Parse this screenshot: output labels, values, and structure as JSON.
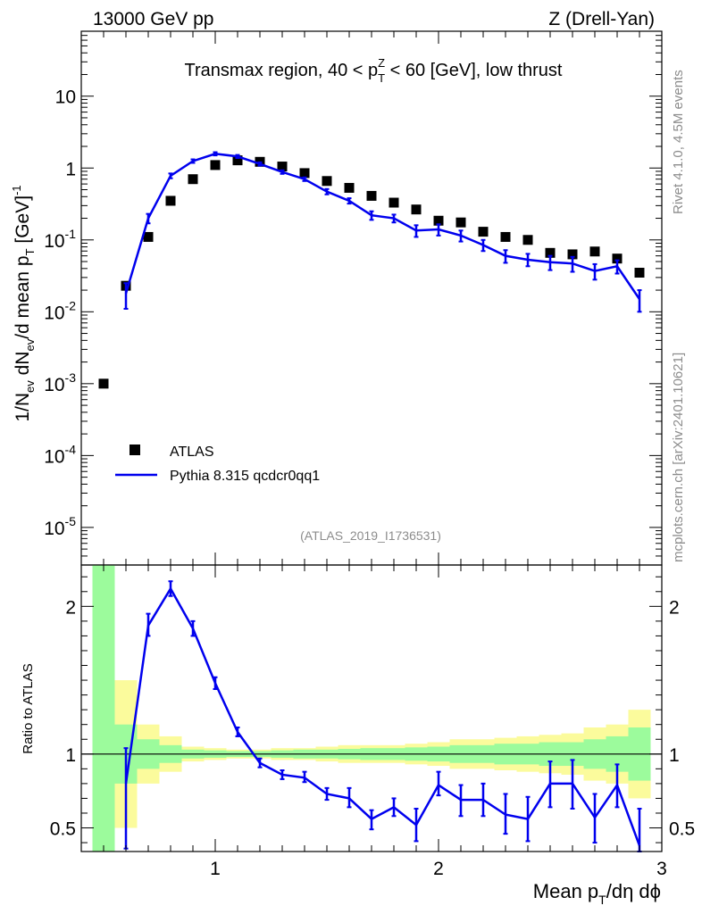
{
  "header": {
    "energy_label": "13000 GeV pp",
    "process_label": "Z (Drell-Yan)"
  },
  "side_labels": {
    "rivet": "Rivet 4.1.0,  4.5M events",
    "mcplots": "mcplots.cern.ch [arXiv:2401.10621]"
  },
  "colors": {
    "mc_line": "#0000ee",
    "band_inner": "#9cfb9c",
    "band_outer": "#fbfb9c",
    "data_marker": "#000000"
  },
  "chart_data": [
    {
      "type": "scatter",
      "title": "Transmax region, 40 < p",
      "title_sup": "Z",
      "title_sub": "T",
      "title_tail": " < 60 [GeV], low thrust",
      "ylabel_parts": [
        "1/N",
        "ev",
        " dN",
        "ev",
        "/d mean p",
        "T",
        " [GeV]",
        "-1"
      ],
      "yscale": "log",
      "ylim": [
        3e-06,
        80
      ],
      "xlim": [
        0.4,
        3.0
      ],
      "x_major_ticks": [
        1,
        2,
        3
      ],
      "y_tick_labels": [
        {
          "base": "10",
          "exp": "-5",
          "value": 1e-05
        },
        {
          "base": "10",
          "exp": "-4",
          "value": 0.0001
        },
        {
          "base": "10",
          "exp": "-3",
          "value": 0.001
        },
        {
          "base": "10",
          "exp": "-2",
          "value": 0.01
        },
        {
          "base": "10",
          "exp": "-1",
          "value": 0.1
        },
        {
          "base": "",
          "exp": "",
          "text": "1",
          "value": 1
        },
        {
          "base": "",
          "exp": "",
          "text": "10",
          "value": 10
        }
      ],
      "watermark": "(ATLAS_2019_I1736531)",
      "legend": {
        "position": "lower-left",
        "entries": [
          {
            "label": "ATLAS",
            "style": "square-marker"
          },
          {
            "label": "Pythia 8.315 qcdcr0qq1",
            "style": "line"
          }
        ]
      },
      "series": [
        {
          "name": "ATLAS",
          "x": [
            0.5,
            0.6,
            0.7,
            0.8,
            0.9,
            1.0,
            1.1,
            1.2,
            1.3,
            1.4,
            1.5,
            1.6,
            1.7,
            1.8,
            1.9,
            2.0,
            2.1,
            2.2,
            2.3,
            2.4,
            2.5,
            2.6,
            2.7,
            2.8,
            2.9
          ],
          "y": [
            0.001,
            0.023,
            0.11,
            0.35,
            0.7,
            1.1,
            1.28,
            1.22,
            1.05,
            0.85,
            0.66,
            0.53,
            0.41,
            0.33,
            0.265,
            0.185,
            0.175,
            0.13,
            0.11,
            0.1,
            0.066,
            0.063,
            0.069,
            0.055,
            0.035
          ]
        },
        {
          "name": "Pythia 8.315 qcdcr0qq1",
          "x": [
            0.6,
            0.7,
            0.8,
            0.9,
            1.0,
            1.1,
            1.2,
            1.3,
            1.4,
            1.5,
            1.6,
            1.7,
            1.8,
            1.9,
            2.0,
            2.1,
            2.2,
            2.3,
            2.4,
            2.5,
            2.6,
            2.7,
            2.8,
            2.9
          ],
          "y": [
            0.018,
            0.2,
            0.78,
            1.25,
            1.58,
            1.45,
            1.14,
            0.88,
            0.7,
            0.47,
            0.35,
            0.22,
            0.2,
            0.135,
            0.14,
            0.115,
            0.085,
            0.06,
            0.053,
            0.049,
            0.047,
            0.037,
            0.043,
            0.015
          ],
          "y_low": [
            0.011,
            0.17,
            0.72,
            1.18,
            1.5,
            1.38,
            1.08,
            0.83,
            0.66,
            0.43,
            0.32,
            0.19,
            0.175,
            0.11,
            0.115,
            0.095,
            0.07,
            0.048,
            0.043,
            0.038,
            0.036,
            0.028,
            0.034,
            0.01
          ],
          "y_high": [
            0.025,
            0.23,
            0.84,
            1.32,
            1.66,
            1.52,
            1.2,
            0.93,
            0.74,
            0.51,
            0.38,
            0.25,
            0.225,
            0.16,
            0.165,
            0.135,
            0.1,
            0.072,
            0.064,
            0.06,
            0.058,
            0.046,
            0.052,
            0.02
          ]
        }
      ]
    },
    {
      "type": "line",
      "ylabel": "Ratio to ATLAS",
      "xlabel": "Mean p",
      "xlabel_sub": "T",
      "xlabel_tail": "/dη dϕ",
      "xlim": [
        0.4,
        3.0
      ],
      "ylim": [
        0.34,
        2.28
      ],
      "x_tick_labels": [
        "1",
        "2",
        "3"
      ],
      "y_tick_labels": [
        "0.5",
        "1",
        "2"
      ],
      "reference_line": 1.0,
      "bands": {
        "edges": [
          0.45,
          0.55,
          0.65,
          0.75,
          0.85,
          0.95,
          1.05,
          1.15,
          1.25,
          1.35,
          1.45,
          1.55,
          1.65,
          1.75,
          1.85,
          1.95,
          2.05,
          2.15,
          2.25,
          2.35,
          2.45,
          2.55,
          2.65,
          2.75,
          2.85,
          2.95
        ],
        "outer_low": [
          0.34,
          0.5,
          0.8,
          0.88,
          0.95,
          0.96,
          0.97,
          0.97,
          0.96,
          0.96,
          0.95,
          0.94,
          0.94,
          0.94,
          0.93,
          0.92,
          0.9,
          0.9,
          0.89,
          0.88,
          0.87,
          0.86,
          0.82,
          0.8,
          0.7
        ],
        "outer_high": [
          2.28,
          1.5,
          1.2,
          1.12,
          1.05,
          1.04,
          1.03,
          1.03,
          1.04,
          1.04,
          1.05,
          1.06,
          1.06,
          1.06,
          1.07,
          1.08,
          1.1,
          1.1,
          1.11,
          1.12,
          1.13,
          1.14,
          1.18,
          1.2,
          1.3
        ],
        "inner_low": [
          0.34,
          0.8,
          0.9,
          0.94,
          0.97,
          0.975,
          0.98,
          0.98,
          0.975,
          0.97,
          0.97,
          0.965,
          0.96,
          0.96,
          0.955,
          0.95,
          0.94,
          0.94,
          0.93,
          0.93,
          0.92,
          0.92,
          0.9,
          0.88,
          0.82
        ],
        "inner_high": [
          2.28,
          1.2,
          1.1,
          1.06,
          1.03,
          1.025,
          1.02,
          1.02,
          1.025,
          1.03,
          1.03,
          1.035,
          1.04,
          1.04,
          1.045,
          1.05,
          1.06,
          1.06,
          1.07,
          1.07,
          1.08,
          1.08,
          1.1,
          1.12,
          1.18
        ]
      },
      "series": [
        {
          "name": "Pythia 8.315 qcdcr0qq1 / ATLAS",
          "x": [
            0.6,
            0.7,
            0.8,
            0.9,
            1.0,
            1.1,
            1.2,
            1.3,
            1.4,
            1.5,
            1.6,
            1.7,
            1.8,
            1.9,
            2.0,
            2.1,
            2.2,
            2.3,
            2.4,
            2.5,
            2.6,
            2.7,
            2.8,
            2.9
          ],
          "y": [
            0.8,
            1.87,
            2.12,
            1.85,
            1.48,
            1.15,
            0.94,
            0.86,
            0.84,
            0.73,
            0.7,
            0.56,
            0.64,
            0.52,
            0.79,
            0.69,
            0.69,
            0.59,
            0.56,
            0.8,
            0.8,
            0.57,
            0.79,
            0.38
          ],
          "y_low": [
            0.36,
            1.8,
            2.07,
            1.8,
            1.44,
            1.12,
            0.91,
            0.83,
            0.81,
            0.69,
            0.64,
            0.49,
            0.58,
            0.41,
            0.72,
            0.58,
            0.58,
            0.46,
            0.41,
            0.64,
            0.63,
            0.4,
            0.64,
            0.31
          ],
          "y_high": [
            1.04,
            1.95,
            2.17,
            1.9,
            1.52,
            1.18,
            0.97,
            0.89,
            0.88,
            0.77,
            0.77,
            0.62,
            0.7,
            0.63,
            0.88,
            0.79,
            0.8,
            0.73,
            0.71,
            0.95,
            0.96,
            0.73,
            0.93,
            0.63
          ]
        }
      ]
    }
  ]
}
